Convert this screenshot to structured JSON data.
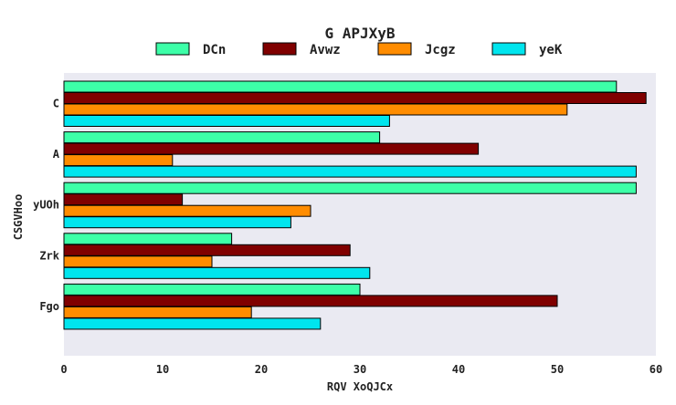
{
  "chart_data": {
    "type": "bar",
    "orientation": "horizontal",
    "title": "G APJXyB",
    "xlabel": "RQV XoQJCx",
    "ylabel": "CSGVHoo",
    "categories": [
      "C",
      "A",
      "yUOh",
      "Zrk",
      "Fgo"
    ],
    "xlim": [
      0,
      60
    ],
    "xticks": [
      "0",
      "10",
      "20",
      "30",
      "40",
      "50",
      "60"
    ],
    "grid": false,
    "legend_position": "top",
    "series": [
      {
        "name": "DCn",
        "color": "#3dffa8",
        "values": [
          56,
          32,
          58,
          17,
          30
        ]
      },
      {
        "name": "Avwz",
        "color": "#800000",
        "values": [
          59,
          42,
          12,
          29,
          50
        ]
      },
      {
        "name": "Jcgz",
        "color": "#ff8c00",
        "values": [
          51,
          11,
          25,
          15,
          19
        ]
      },
      {
        "name": "yeK",
        "color": "#00e5ee",
        "values": [
          33,
          58,
          23,
          31,
          26
        ]
      }
    ]
  }
}
